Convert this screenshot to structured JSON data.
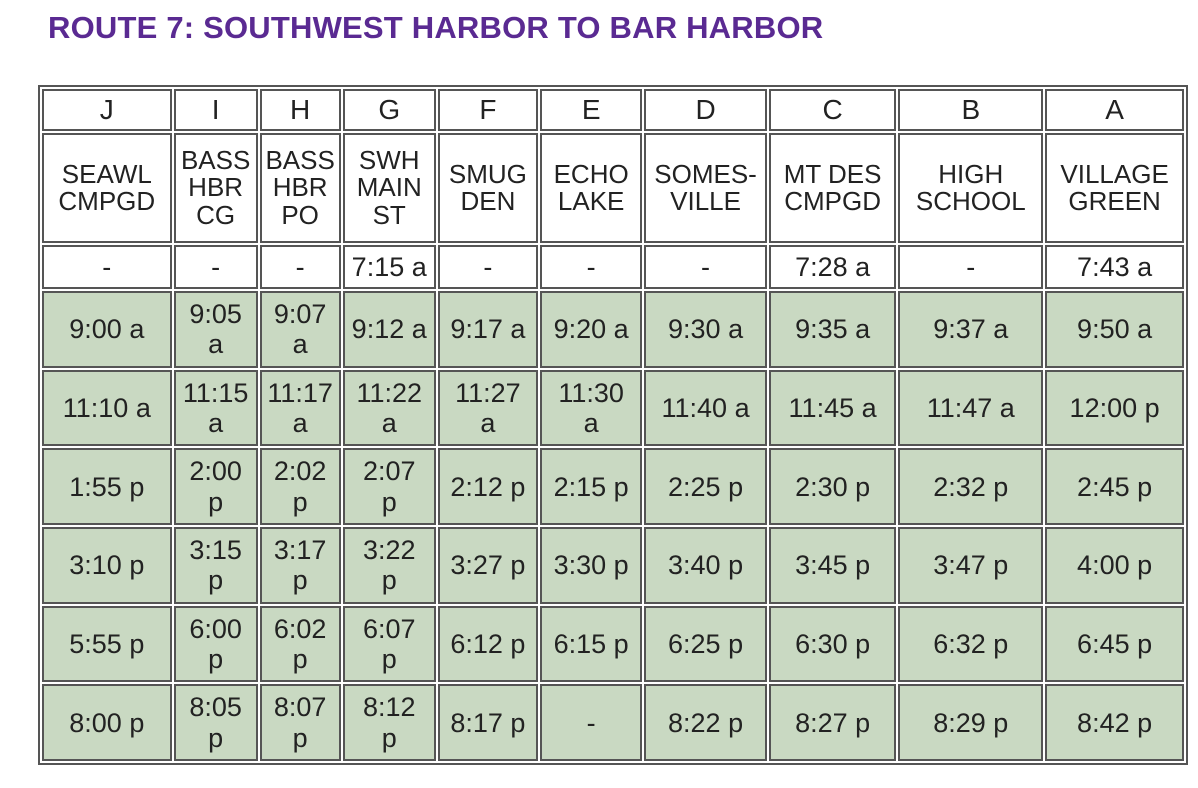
{
  "title": "ROUTE 7: SOUTHWEST HARBOR TO BAR HARBOR",
  "table": {
    "letters": [
      "J",
      "I",
      "H",
      "G",
      "F",
      "E",
      "D",
      "C",
      "B",
      "A"
    ],
    "stops": [
      "SEAWL\nCMPGD",
      "BASS\nHBR\nCG",
      "BASS\nHBR\nPO",
      "SWH\nMAIN\nST",
      "SMUG\nDEN",
      "ECHO\nLAKE",
      "SOMES-\nVILLE",
      "MT DES\nCMPGD",
      "HIGH\nSCHOOL",
      "VILLAGE\nGREEN"
    ],
    "rows": [
      [
        "-",
        "-",
        "-",
        "7:15 a",
        "-",
        "-",
        "-",
        "7:28 a",
        "-",
        "7:43 a"
      ],
      [
        "9:00 a",
        "9:05\na",
        "9:07\na",
        "9:12 a",
        "9:17 a",
        "9:20 a",
        "9:30 a",
        "9:35 a",
        "9:37 a",
        "9:50 a"
      ],
      [
        "11:10 a",
        "11:15\na",
        "11:17\na",
        "11:22\na",
        "11:27\na",
        "11:30\na",
        "11:40 a",
        "11:45 a",
        "11:47 a",
        "12:00 p"
      ],
      [
        "1:55 p",
        "2:00\np",
        "2:02\np",
        "2:07\np",
        "2:12 p",
        "2:15 p",
        "2:25 p",
        "2:30 p",
        "2:32 p",
        "2:45 p"
      ],
      [
        "3:10 p",
        "3:15\np",
        "3:17\np",
        "3:22\np",
        "3:27 p",
        "3:30 p",
        "3:40 p",
        "3:45 p",
        "3:47 p",
        "4:00 p"
      ],
      [
        "5:55 p",
        "6:00\np",
        "6:02\np",
        "6:07\np",
        "6:12 p",
        "6:15 p",
        "6:25 p",
        "6:30 p",
        "6:32 p",
        "6:45 p"
      ],
      [
        "8:00 p",
        "8:05\np",
        "8:07\np",
        "8:12\np",
        "8:17 p",
        "-",
        "8:22 p",
        "8:27 p",
        "8:29 p",
        "8:42 p"
      ]
    ]
  }
}
